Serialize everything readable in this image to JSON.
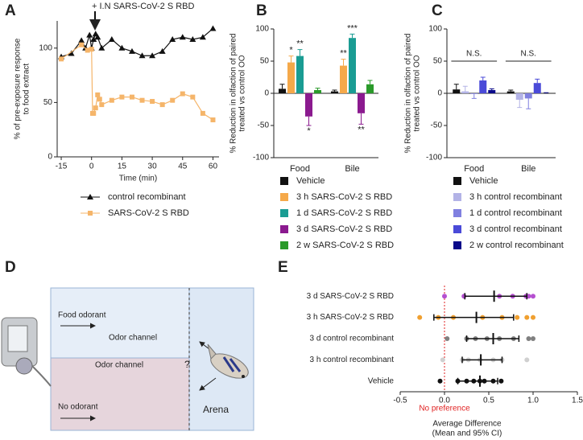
{
  "panel_labels": [
    "A",
    "B",
    "C",
    "D",
    "E"
  ],
  "chart_data": [
    {
      "type": "line",
      "annotation": "+ I.N SARS-CoV-2 S RBD",
      "x_label": "Time (min)",
      "y_label": [
        "% of pre-exposure response",
        "to food extract"
      ],
      "xlim": [
        -17,
        63
      ],
      "xticks": [
        -15,
        0,
        15,
        30,
        45,
        60
      ],
      "ylim": [
        0,
        125
      ],
      "yticks": [
        0,
        50,
        100
      ],
      "series": [
        {
          "name": "control recombinant",
          "color": "#111111",
          "marker": "triangle",
          "x": [
            -15,
            -10,
            -5,
            -3,
            -1,
            0,
            1,
            2,
            3,
            5,
            10,
            15,
            20,
            25,
            30,
            35,
            40,
            45,
            50,
            55,
            60
          ],
          "values": [
            92,
            95,
            107,
            100,
            112,
            100,
            108,
            113,
            110,
            100,
            108,
            100,
            97,
            93,
            93,
            97,
            108,
            110,
            108,
            110,
            118
          ]
        },
        {
          "name": "SARS-CoV-2 S RBD",
          "color": "#f5b56a",
          "marker": "square",
          "x": [
            -15,
            -5,
            -2,
            0,
            0.5,
            1,
            2,
            3,
            4,
            5,
            10,
            15,
            20,
            25,
            30,
            35,
            40,
            45,
            50,
            55,
            60
          ],
          "values": [
            90,
            103,
            98,
            99,
            40,
            40,
            45,
            57,
            53,
            48,
            52,
            55,
            55,
            52,
            51,
            48,
            52,
            58,
            55,
            40,
            34
          ]
        }
      ]
    },
    {
      "type": "bar",
      "y_label": [
        "% Reduction in olfaction of paired",
        "treated vs control OO"
      ],
      "categories": [
        "Food",
        "Bile"
      ],
      "ylim": [
        -100,
        100
      ],
      "yticks": [
        -100,
        -50,
        0,
        50,
        100
      ],
      "series": [
        {
          "name": "Vehicle",
          "color": "#111111",
          "values": [
            7,
            3
          ],
          "errors": [
            7,
            2
          ],
          "significance": [
            null,
            null
          ]
        },
        {
          "name": "3 h SARS-CoV-2 S RBD",
          "color": "#f5a94a",
          "values": [
            48,
            43
          ],
          "errors": [
            10,
            10
          ],
          "significance": [
            "*",
            "**"
          ]
        },
        {
          "name": "1 d SARS-CoV-2 S RBD",
          "color": "#1a9c93",
          "values": [
            58,
            86
          ],
          "errors": [
            10,
            6
          ],
          "significance": [
            "**",
            "***"
          ]
        },
        {
          "name": "3 d SARS-CoV-2 S RBD",
          "color": "#8b1a8f",
          "values": [
            -36,
            -31
          ],
          "errors": [
            14,
            17
          ],
          "significance": [
            "*",
            "**"
          ]
        },
        {
          "name": "2 w SARS-CoV-2 S RBD",
          "color": "#2a9a2a",
          "values": [
            5,
            14
          ],
          "errors": [
            3,
            6
          ],
          "significance": [
            null,
            null
          ]
        }
      ]
    },
    {
      "type": "bar",
      "y_label": [
        "% Reduction in olfaction of paired",
        "treated vs control OO"
      ],
      "categories": [
        "Food",
        "Bile"
      ],
      "ylim": [
        -100,
        100
      ],
      "yticks": [
        -100,
        -50,
        0,
        50,
        100
      ],
      "group_labels": [
        "N.S.",
        "N.S."
      ],
      "series": [
        {
          "name": "Vehicle",
          "color": "#111111",
          "values": [
            6,
            3
          ],
          "errors": [
            8,
            2
          ]
        },
        {
          "name": "3 h control recombinant",
          "color": "#b3b3e6",
          "values": [
            3,
            -10
          ],
          "errors": [
            8,
            12
          ]
        },
        {
          "name": "1 d control recombinant",
          "color": "#8080e0",
          "values": [
            -1,
            -8
          ],
          "errors": [
            7,
            16
          ]
        },
        {
          "name": "3 d control recombinant",
          "color": "#4a4ad8",
          "values": [
            20,
            16
          ],
          "errors": [
            5,
            6
          ]
        },
        {
          "name": "2 w control recombinant",
          "color": "#0a0a8a",
          "values": [
            5,
            0
          ],
          "errors": [
            2,
            1
          ]
        }
      ]
    },
    {
      "type": "dotplot",
      "x_label": [
        "Average Difference",
        "(Mean and 95% CI)"
      ],
      "reference_x": 0,
      "reference_label": "No preference",
      "xlim": [
        -0.5,
        1.5
      ],
      "xticks": [
        -0.5,
        {
          "value": 0,
          "label": "0.0"
        },
        0.5,
        {
          "value": 1,
          "label": "1.0"
        },
        1.5
      ],
      "categories": [
        "3 d SARS-CoV-2 S RBD",
        "3 h SARS-CoV-2 S RBD",
        "3 d control recombinant",
        "3 h control recombinant",
        "Vehicle"
      ],
      "colors": [
        "#b54fd0",
        "#f0a030",
        "#808080",
        "#d0d0d0",
        "#111111"
      ],
      "points": [
        [
          0.0,
          0.22,
          0.62,
          0.77,
          0.92,
          0.95,
          1.0
        ],
        [
          -0.28,
          -0.07,
          0.1,
          0.43,
          0.65,
          0.82,
          0.93,
          1.0
        ],
        [
          0.03,
          0.25,
          0.35,
          0.48,
          0.62,
          0.78,
          0.95,
          1.0
        ],
        [
          -0.02,
          0.2,
          0.27,
          0.4,
          0.55,
          0.65,
          0.93
        ],
        [
          -0.05,
          0.15,
          0.25,
          0.33,
          0.4,
          0.45,
          0.55,
          0.64
        ]
      ],
      "means": [
        0.56,
        0.36,
        0.55,
        0.41,
        0.4
      ],
      "ci_low": [
        0.23,
        -0.12,
        0.25,
        0.2,
        0.15
      ],
      "ci_high": [
        0.93,
        0.78,
        0.84,
        0.65,
        0.6
      ]
    }
  ],
  "diagram": {
    "food_odorant": "Food odorant",
    "odor_channel_top": "Odor channel",
    "odor_channel_bottom": "Odor channel",
    "question": "?",
    "no_odorant": "No odorant",
    "arena": "Arena"
  }
}
